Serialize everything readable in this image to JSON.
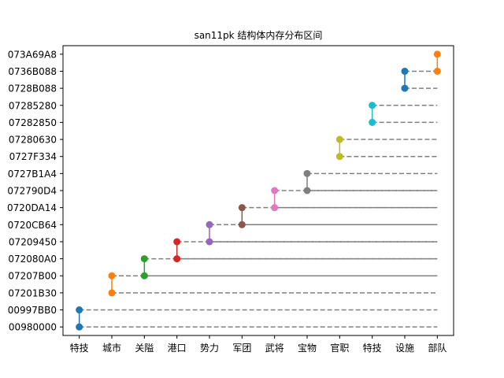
{
  "chart_data": {
    "type": "line",
    "title": "san11pk 结构体内存分布区间",
    "categories": [
      "特技",
      "城市",
      "关隘",
      "港口",
      "势力",
      "军团",
      "武将",
      "宝物",
      "官职",
      "特技",
      "设施",
      "部队"
    ],
    "y_labels": [
      "00980000",
      "00997BB0",
      "07201B30",
      "07207B00",
      "072080A0",
      "07209450",
      "0720CB64",
      "0720DA14",
      "072790D4",
      "0727B1A4",
      "0727F334",
      "07280630",
      "07282850",
      "07285280",
      "0728B088",
      "0736B088",
      "073A69A8"
    ],
    "ylim": [
      -0.5,
      16.5
    ],
    "series": [
      {
        "category": "特技",
        "start": "00980000",
        "end": "00997BB0",
        "color": "#1f77b4"
      },
      {
        "category": "城市",
        "start": "07201B30",
        "end": "07207B00",
        "color": "#ff7f0e"
      },
      {
        "category": "关隘",
        "start": "07207B00",
        "end": "072080A0",
        "color": "#2ca02c"
      },
      {
        "category": "港口",
        "start": "072080A0",
        "end": "07209450",
        "color": "#d62728"
      },
      {
        "category": "势力",
        "start": "07209450",
        "end": "0720CB64",
        "color": "#9467bd"
      },
      {
        "category": "军团",
        "start": "0720CB64",
        "end": "0720DA14",
        "color": "#8c564b"
      },
      {
        "category": "武将",
        "start": "0720DA14",
        "end": "072790D4",
        "color": "#e377c2"
      },
      {
        "category": "宝物",
        "start": "072790D4",
        "end": "0727B1A4",
        "color": "#7f7f7f"
      },
      {
        "category": "官职",
        "start": "0727F334",
        "end": "07280630",
        "color": "#bcbd22"
      },
      {
        "category": "特技",
        "start": "07282850",
        "end": "07285280",
        "color": "#17becf"
      },
      {
        "category": "设施",
        "start": "0728B088",
        "end": "0736B088",
        "color": "#1f77b4"
      },
      {
        "category": "部队",
        "start": "0736B088",
        "end": "073A69A8",
        "color": "#ff7f0e"
      }
    ],
    "guide_lines": "dashed",
    "grid": false,
    "legend": "none"
  }
}
